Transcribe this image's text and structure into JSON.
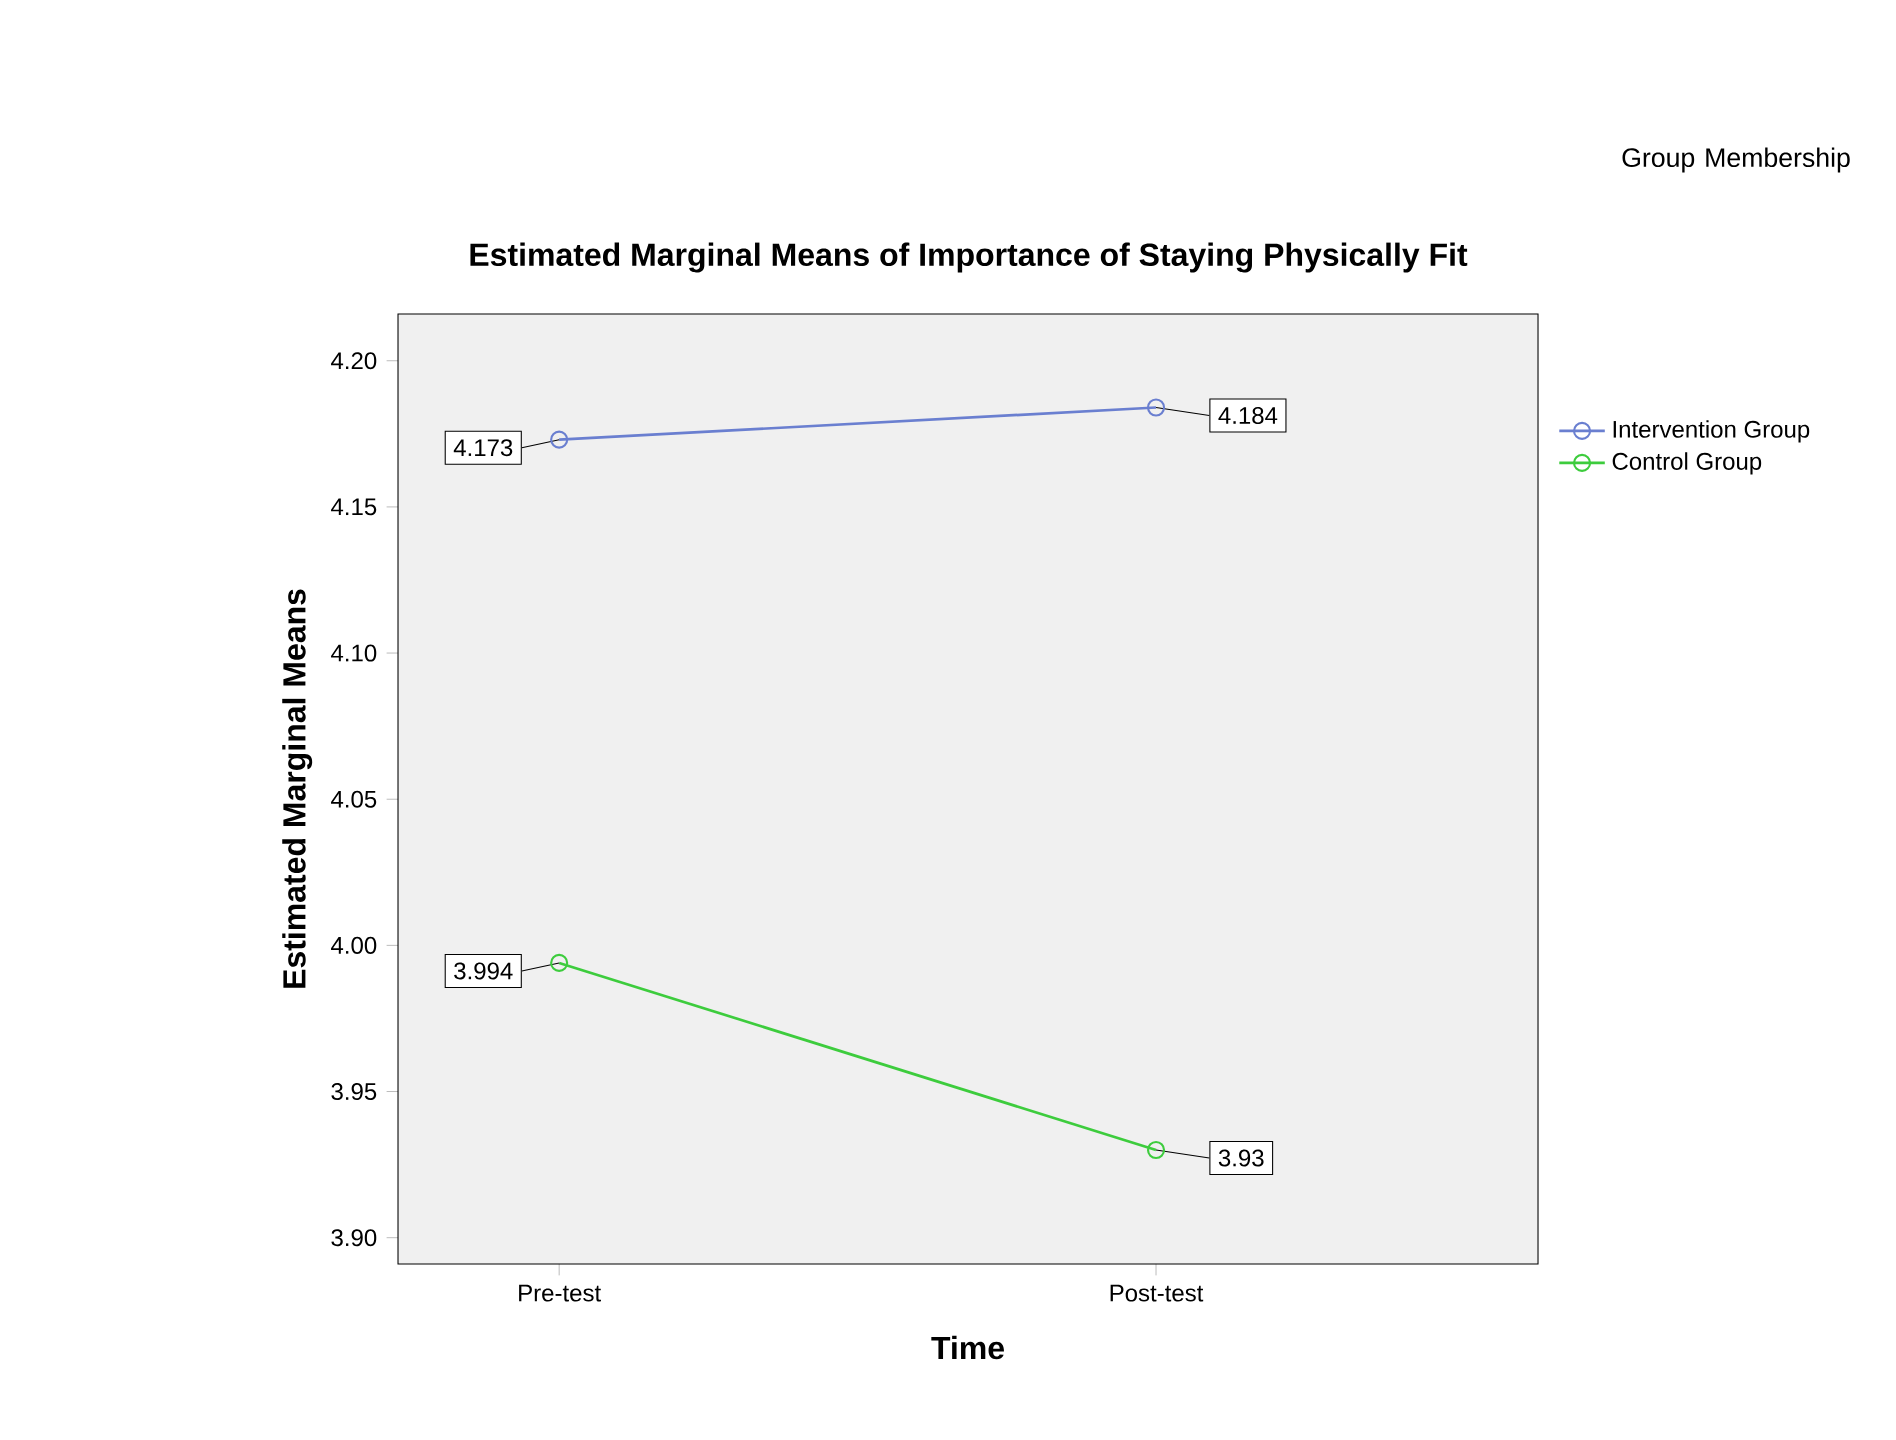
{
  "chart_data": {
    "type": "line",
    "title": "Estimated Marginal Means of Importance of Staying Physically Fit",
    "xlabel": "Time",
    "ylabel": "Estimated Marginal Means",
    "legend_title": "Group Membership",
    "categories": [
      "Pre-test",
      "Post-test"
    ],
    "series": [
      {
        "name": "Intervention Group",
        "color": "#6a7fd0",
        "values": [
          4.173,
          4.184
        ],
        "value_labels": [
          "4.173",
          "4.184"
        ]
      },
      {
        "name": "Control Group",
        "color": "#3dcc3d",
        "values": [
          3.994,
          3.93
        ],
        "value_labels": [
          "3.994",
          "3.93"
        ]
      }
    ],
    "ylim": [
      3.891,
      4.216
    ],
    "yticks": [
      {
        "value": 3.9,
        "label": "3.90"
      },
      {
        "value": 3.95,
        "label": "3.95"
      },
      {
        "value": 4.0,
        "label": "4.00"
      },
      {
        "value": 4.05,
        "label": "4.05"
      },
      {
        "value": 4.1,
        "label": "4.10"
      },
      {
        "value": 4.15,
        "label": "4.15"
      },
      {
        "value": 4.2,
        "label": "4.20"
      }
    ],
    "marker": "circle",
    "legend": "right",
    "grid": false
  }
}
